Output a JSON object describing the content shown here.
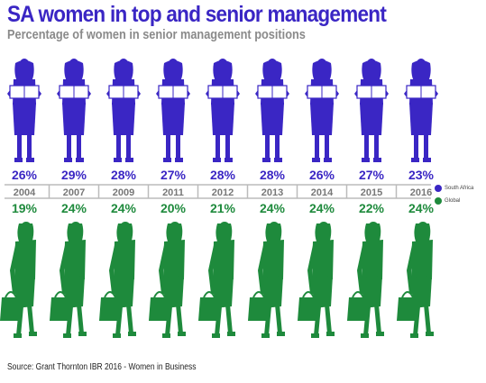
{
  "title": "SA women in top and senior management",
  "subtitle": "Percentage of women in senior management positions",
  "source": "Source: Grant Thornton IBR 2016 - Women in Business",
  "colors": {
    "south_africa": "#3a26c4",
    "global": "#1e8a3c",
    "year_text": "#777777",
    "rule": "#bbbbbb"
  },
  "chart_data": {
    "type": "table",
    "categories": [
      "2004",
      "2007",
      "2009",
      "2011",
      "2012",
      "2013",
      "2014",
      "2015",
      "2016"
    ],
    "series": [
      {
        "name": "South Africa",
        "values": [
          26,
          29,
          28,
          27,
          28,
          28,
          26,
          27,
          23
        ],
        "labels": [
          "26%",
          "29%",
          "28%",
          "27%",
          "28%",
          "28%",
          "26%",
          "27%",
          "23%"
        ]
      },
      {
        "name": "Global",
        "values": [
          19,
          24,
          24,
          20,
          21,
          24,
          24,
          22,
          24
        ],
        "labels": [
          "19%",
          "24%",
          "24%",
          "20%",
          "21%",
          "24%",
          "24%",
          "22%",
          "24%"
        ]
      }
    ],
    "legend": "right"
  }
}
